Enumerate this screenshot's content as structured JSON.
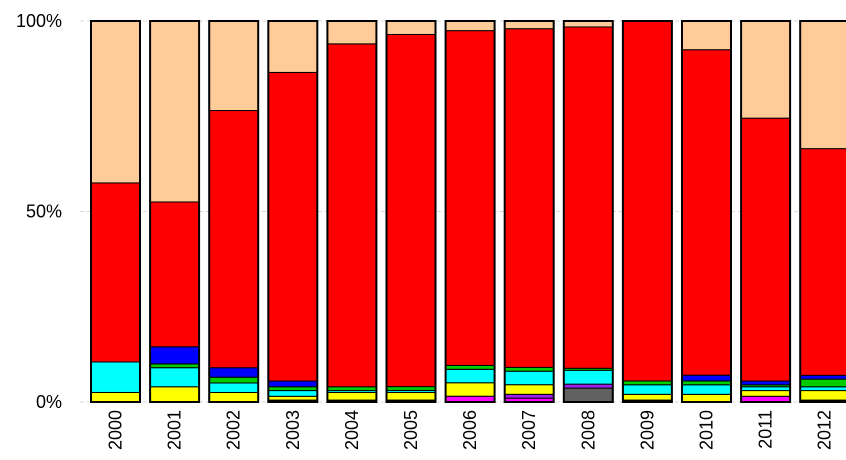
{
  "chart_data": {
    "type": "bar",
    "stacked": true,
    "normalized": true,
    "categories": [
      "2000",
      "2001",
      "2002",
      "2003",
      "2004",
      "2005",
      "2006",
      "2007",
      "2008",
      "2009",
      "2010",
      "2011",
      "2012"
    ],
    "y_ticks": [
      {
        "value": 0,
        "label": "0%"
      },
      {
        "value": 50,
        "label": "50%"
      },
      {
        "value": 100,
        "label": "100%"
      }
    ],
    "ylim": [
      0,
      100
    ],
    "grid": true,
    "series": [
      {
        "color": "#000000",
        "values": [
          0,
          0,
          0,
          0.5,
          0.5,
          0.5,
          0,
          0,
          0,
          0.5,
          0,
          0,
          0.5
        ]
      },
      {
        "color": "#ff00ff",
        "values": [
          0,
          0,
          0,
          0,
          0,
          0,
          1.5,
          1,
          0,
          0,
          0,
          1.5,
          0
        ]
      },
      {
        "color": "#606060",
        "values": [
          0,
          0,
          0,
          0,
          0,
          0,
          0,
          0,
          3.5,
          0,
          0,
          0,
          0
        ]
      },
      {
        "color": "#a020f0",
        "values": [
          0,
          0,
          0,
          0,
          0,
          0,
          0,
          1,
          1,
          0,
          0,
          0,
          0
        ]
      },
      {
        "color": "#ffff00",
        "values": [
          2.5,
          4,
          2.5,
          1,
          2,
          2,
          3.5,
          2.5,
          0,
          1.5,
          2,
          1.5,
          2.5
        ]
      },
      {
        "color": "#00ffff",
        "values": [
          8,
          5,
          2.5,
          1.5,
          0.5,
          0.5,
          3.5,
          3.5,
          3.5,
          2.5,
          2.5,
          1,
          1
        ]
      },
      {
        "color": "#00cc00",
        "values": [
          0,
          1,
          1.5,
          1,
          1,
          1,
          1,
          1,
          0.5,
          1,
          1,
          0.5,
          2
        ]
      },
      {
        "color": "#0000ff",
        "values": [
          0,
          4.5,
          2.5,
          1.5,
          0,
          0,
          0,
          0,
          0,
          0,
          1.5,
          1,
          1
        ]
      },
      {
        "color": "#ff0000",
        "values": [
          47,
          38,
          67.5,
          81,
          90,
          91.5,
          87,
          88,
          86,
          94,
          85,
          69,
          59.5
        ]
      },
      {
        "color": "#ffcc99",
        "values": [
          42.5,
          47.5,
          23.5,
          13.5,
          6,
          3.5,
          2.5,
          2,
          1.5,
          0,
          7.5,
          25.5,
          33.5
        ]
      }
    ]
  }
}
